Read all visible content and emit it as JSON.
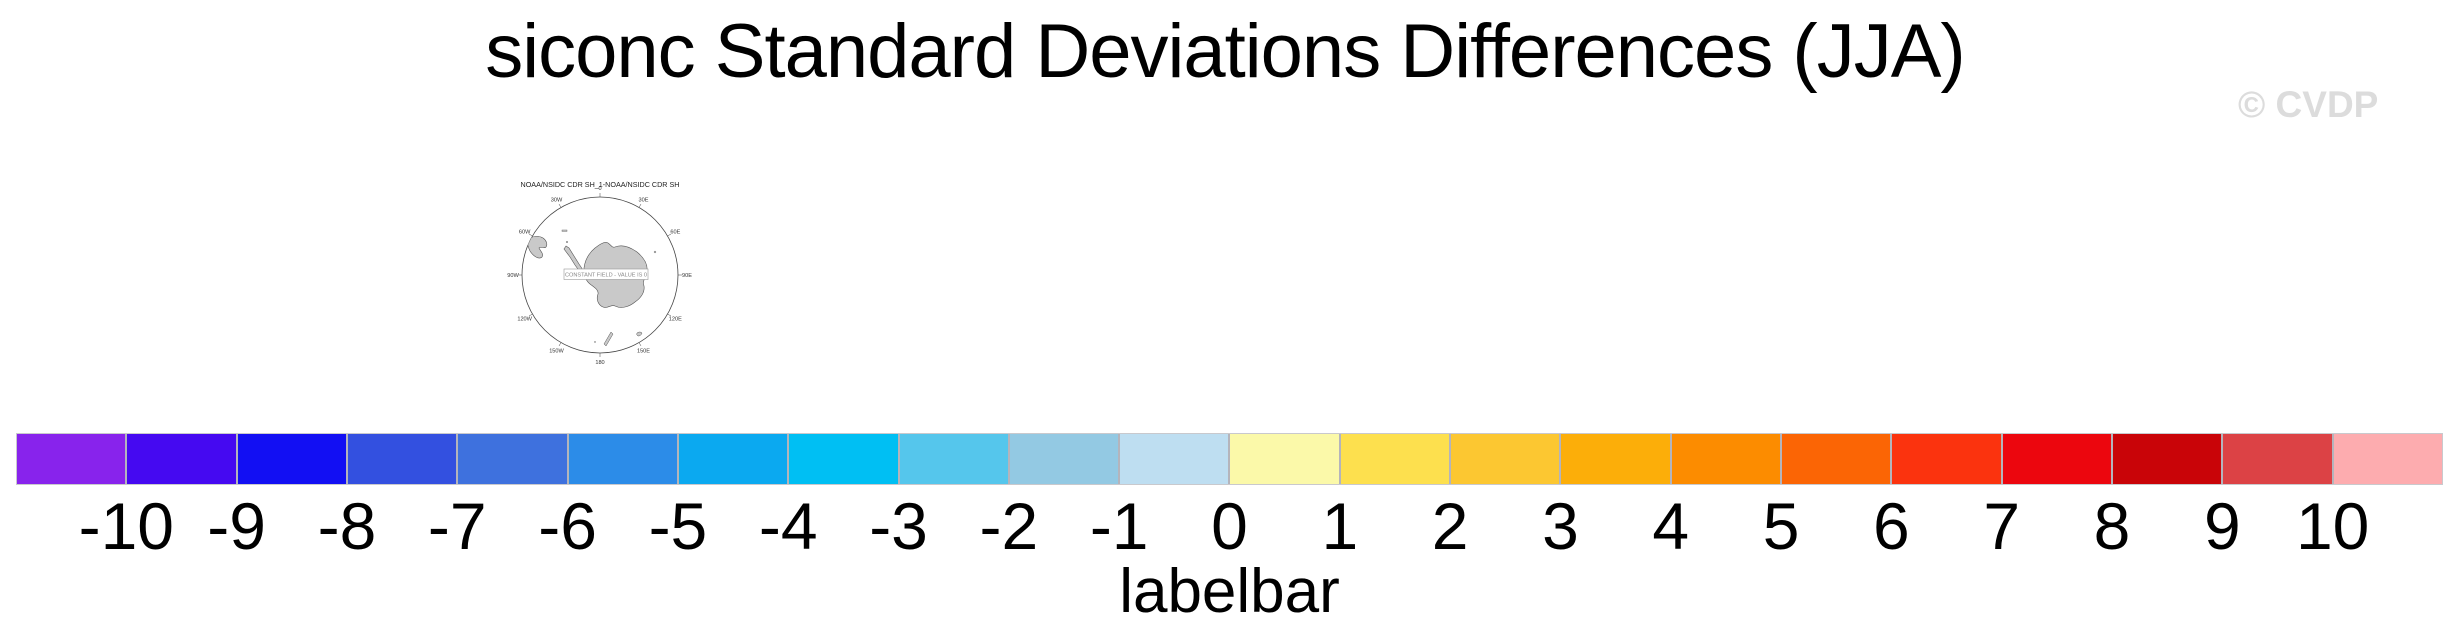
{
  "title": "siconc Standard Deviations Differences (JJA)",
  "watermark": "© CVDP",
  "map": {
    "title": "NOAA/NSIDC CDR SH_1-NOAA/NSIDC CDR SH",
    "center_note": "CONSTANT FIELD - VALUE IS 0",
    "lon_labels": [
      "0",
      "30E",
      "60E",
      "90E",
      "120E",
      "150E",
      "180",
      "150W",
      "120W",
      "90W",
      "60W",
      "30W"
    ]
  },
  "colorbar": {
    "label": "labelbar",
    "ticks": [
      "-10",
      "-9",
      "-8",
      "-7",
      "-6",
      "-5",
      "-4",
      "-3",
      "-2",
      "-1",
      "0",
      "1",
      "2",
      "3",
      "4",
      "5",
      "6",
      "7",
      "8",
      "9",
      "10"
    ],
    "colors": [
      "#8823EC",
      "#4509F1",
      "#120FF3",
      "#3350E0",
      "#3E71DE",
      "#2C8CE8",
      "#0BA9F0",
      "#00BFF3",
      "#55C6EC",
      "#93C9E3",
      "#BEDEF1",
      "#FBF9A9",
      "#FDE04E",
      "#FCC731",
      "#FCAE09",
      "#FC8C00",
      "#FB6505",
      "#FB330E",
      "#EC060E",
      "#C90408",
      "#DC4245",
      "#FDACAF"
    ]
  },
  "chart_data": {
    "type": "heatmap",
    "title": "siconc Standard Deviations Differences (JJA)",
    "variable": "siconc",
    "season": "JJA",
    "panel": {
      "title": "NOAA/NSIDC CDR SH_1-NOAA/NSIDC CDR SH",
      "annotation": "CONSTANT FIELD - VALUE IS 0",
      "constant_value": 0,
      "longitude_labels": [
        "0",
        "30E",
        "60E",
        "90E",
        "120E",
        "150E",
        "180",
        "150W",
        "120W",
        "90W",
        "60W",
        "30W"
      ]
    },
    "colorbar": {
      "label": "labelbar",
      "ticks": [
        -10,
        -9,
        -8,
        -7,
        -6,
        -5,
        -4,
        -3,
        -2,
        -1,
        0,
        1,
        2,
        3,
        4,
        5,
        6,
        7,
        8,
        9,
        10
      ],
      "colors": [
        "#8823EC",
        "#4509F1",
        "#120FF3",
        "#3350E0",
        "#3E71DE",
        "#2C8CE8",
        "#0BA9F0",
        "#00BFF3",
        "#55C6EC",
        "#93C9E3",
        "#BEDEF1",
        "#FBF9A9",
        "#FDE04E",
        "#FCC731",
        "#FCAE09",
        "#FC8C00",
        "#FB6505",
        "#FB330E",
        "#EC060E",
        "#C90408",
        "#DC4245",
        "#FDACAF"
      ],
      "legend_position": "bottom"
    }
  }
}
